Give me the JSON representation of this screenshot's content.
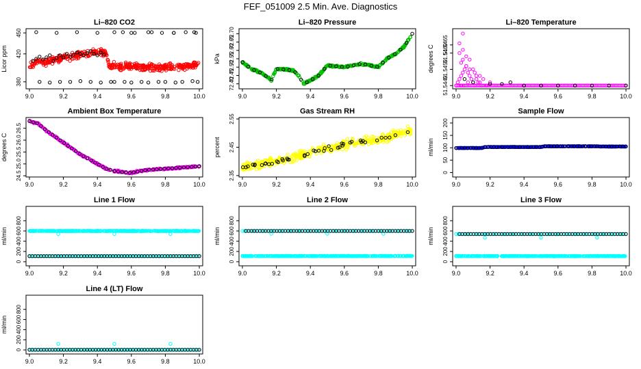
{
  "page": {
    "title": "FEF_051009  2.5 Min. Ave. Diagnostics"
  },
  "colors": {
    "red": "#ff0000",
    "green": "#00c000",
    "magenta": "#ff00ff",
    "yellow": "#ffff00",
    "blue": "#0000ff",
    "cyan": "#00ffff",
    "black": "#000000"
  },
  "chart_data": [
    {
      "id": "li820-co2",
      "type": "scatter",
      "title": "Li–820 CO2",
      "ylabel": "Licor ppm",
      "xlim": [
        8.98,
        10.02
      ],
      "ylim": [
        370,
        456
      ],
      "xticks": [
        "9.0",
        "9.2",
        "9.4",
        "9.6",
        "9.8",
        "10.0"
      ],
      "yticks": [
        "380",
        "420",
        "450"
      ],
      "series": [
        {
          "name": "raw",
          "color": "red",
          "kind": "noisy",
          "x": [
            9.0,
            9.05,
            9.1,
            9.15,
            9.2,
            9.25,
            9.3,
            9.35,
            9.4,
            9.45,
            9.47,
            9.5,
            9.6,
            9.7,
            9.8,
            9.9,
            10.0
          ],
          "y": [
            403,
            410,
            408,
            412,
            414,
            416,
            419,
            420,
            424,
            421,
            404,
            403,
            402,
            401,
            401,
            402,
            404
          ],
          "n": 460,
          "noise": 7
        },
        {
          "name": "2.5 min avg",
          "color": "black",
          "kind": "points",
          "x": [
            9.02,
            9.04,
            9.06,
            9.08,
            9.1,
            9.12,
            9.14,
            9.16,
            9.18,
            9.2,
            9.22,
            9.24,
            9.26,
            9.28,
            9.3,
            9.32,
            9.34,
            9.36,
            9.38,
            9.4,
            9.42,
            9.44,
            9.5,
            9.56,
            9.6,
            9.66,
            9.7,
            9.76,
            9.8,
            9.86,
            9.9,
            9.96,
            9.99,
            9.06,
            9.12,
            9.18,
            9.24,
            9.3,
            9.36,
            9.42,
            9.48,
            9.55,
            9.62,
            9.7,
            9.78,
            9.85,
            9.92,
            9.98,
            9.04,
            9.16,
            9.28,
            9.4,
            9.5,
            9.6,
            9.72,
            9.85,
            9.97
          ],
          "y": [
            410,
            413,
            416,
            412,
            415,
            418,
            410,
            414,
            418,
            415,
            420,
            416,
            419,
            422,
            420,
            418,
            421,
            424,
            420,
            418,
            422,
            419,
            380,
            380,
            379,
            380,
            379,
            380,
            380,
            379,
            380,
            381,
            380,
            380,
            379,
            380,
            380,
            381,
            380,
            379,
            380,
            451,
            450,
            451,
            450,
            450,
            451,
            450,
            451,
            450,
            451,
            450,
            451,
            450,
            451,
            450,
            451
          ]
        }
      ]
    },
    {
      "id": "li820-pressure",
      "type": "scatter",
      "title": "Li–820 Pressure",
      "ylabel": "kPa",
      "xlim": [
        8.98,
        10.02
      ],
      "ylim": [
        72.37,
        72.73
      ],
      "xticks": [
        "9.0",
        "9.2",
        "9.4",
        "9.6",
        "9.8",
        "10.0"
      ],
      "yticks": [
        "72.40",
        "72.45",
        "72.50",
        "72.55",
        "72.60",
        "72.65",
        "72.70"
      ],
      "series": [
        {
          "name": "raw",
          "color": "green",
          "kind": "noisy",
          "x": [
            9.0,
            9.05,
            9.1,
            9.15,
            9.17,
            9.2,
            9.3,
            9.33,
            9.36,
            9.4,
            9.45,
            9.5,
            9.6,
            9.7,
            9.8,
            9.85,
            9.9,
            9.95,
            10.0
          ],
          "y": [
            72.53,
            72.49,
            72.47,
            72.44,
            72.42,
            72.49,
            72.48,
            72.45,
            72.4,
            72.42,
            72.45,
            72.51,
            72.5,
            72.52,
            72.5,
            72.55,
            72.58,
            72.62,
            72.7
          ],
          "n": 400,
          "noise": 0.008
        },
        {
          "name": "2.5 min avg",
          "color": "black",
          "kind": "line-points",
          "x": [
            9.0,
            9.05,
            9.1,
            9.15,
            9.17,
            9.2,
            9.3,
            9.33,
            9.36,
            9.4,
            9.45,
            9.5,
            9.6,
            9.7,
            9.8,
            9.85,
            9.9,
            9.95,
            10.0
          ],
          "y": [
            72.53,
            72.49,
            72.47,
            72.44,
            72.42,
            72.49,
            72.48,
            72.45,
            72.4,
            72.42,
            72.45,
            72.51,
            72.5,
            72.52,
            72.5,
            72.55,
            72.58,
            72.62,
            72.7
          ],
          "n": 30
        }
      ]
    },
    {
      "id": "li820-temperature",
      "type": "scatter",
      "title": "Li–820 Temperature",
      "ylabel": "degrees C",
      "xlim": [
        8.98,
        10.02
      ],
      "ylim": [
        51.5438,
        51.5475
      ],
      "xticks": [
        "9.0",
        "9.2",
        "9.4",
        "9.6",
        "9.8",
        "10.0"
      ],
      "yticks": [
        "51.5440",
        "51.5450",
        "51.5460",
        "51.5465"
      ],
      "series": [
        {
          "name": "raw",
          "color": "magenta",
          "kind": "points",
          "x": [
            9.0,
            9.01,
            9.02,
            9.03,
            9.04,
            9.05,
            9.06,
            9.07,
            9.08,
            9.09,
            9.1,
            9.11,
            9.12,
            9.14,
            9.16,
            9.03,
            9.04,
            9.06,
            9.08,
            9.1,
            9.12,
            9.14,
            9.02,
            9.04,
            9.06,
            9.08,
            9.02,
            9.04,
            9.03,
            9.05,
            9.07,
            9.11,
            9.13,
            9.15,
            9.18,
            9.2
          ],
          "y": [
            51.544,
            51.5442,
            51.5444,
            51.5446,
            51.5448,
            51.545,
            51.5452,
            51.5448,
            51.5446,
            51.5444,
            51.5442,
            51.5448,
            51.5444,
            51.5442,
            51.5444,
            51.5454,
            51.5456,
            51.5452,
            51.545,
            51.545,
            51.5446,
            51.5446,
            51.546,
            51.5462,
            51.5458,
            51.5456,
            51.5466,
            51.5472,
            51.544,
            51.544,
            51.5442,
            51.544,
            51.5442,
            51.544,
            51.544,
            51.5442
          ]
        },
        {
          "name": "baseline",
          "color": "magenta",
          "kind": "line-points",
          "x": [
            9.0,
            10.0
          ],
          "y": [
            51.544,
            51.544
          ],
          "n": 120
        },
        {
          "name": "2.5 min avg",
          "color": "black",
          "kind": "points",
          "x": [
            9.05,
            9.1,
            9.2,
            9.27,
            9.32,
            9.4,
            9.5,
            9.6,
            9.7,
            9.8,
            9.9,
            10.0
          ],
          "y": [
            51.5444,
            51.5442,
            51.5441,
            51.5441,
            51.5442,
            51.544,
            51.544,
            51.544,
            51.544,
            51.544,
            51.544,
            51.544
          ]
        }
      ]
    },
    {
      "id": "ambient-box-temperature",
      "type": "scatter",
      "title": "Ambient Box Temperature",
      "ylabel": "degrees C",
      "xlim": [
        8.98,
        10.02
      ],
      "ylim": [
        24.45,
        26.95
      ],
      "xticks": [
        "9.0",
        "9.2",
        "9.4",
        "9.6",
        "9.8",
        "10.0"
      ],
      "yticks": [
        "24.5",
        "25.0",
        "25.5",
        "26.0",
        "26.5"
      ],
      "series": [
        {
          "name": "raw",
          "color": "magenta",
          "kind": "noisy",
          "x": [
            9.0,
            9.05,
            9.1,
            9.15,
            9.2,
            9.3,
            9.4,
            9.45,
            9.5,
            9.55,
            9.6,
            9.65,
            9.7,
            9.8,
            9.9,
            10.0
          ],
          "y": [
            26.8,
            26.7,
            26.4,
            26.15,
            25.9,
            25.4,
            25.0,
            24.8,
            24.7,
            24.65,
            24.62,
            24.7,
            24.75,
            24.8,
            24.85,
            24.9
          ],
          "n": 400,
          "noise": 0.05
        },
        {
          "name": "2.5 min avg",
          "color": "black",
          "kind": "line-points",
          "x": [
            9.0,
            9.05,
            9.1,
            9.15,
            9.2,
            9.3,
            9.4,
            9.45,
            9.5,
            9.55,
            9.6,
            9.65,
            9.7,
            9.8,
            9.9,
            10.0
          ],
          "y": [
            26.8,
            26.7,
            26.4,
            26.15,
            25.9,
            25.4,
            25.0,
            24.8,
            24.7,
            24.65,
            24.62,
            24.7,
            24.75,
            24.8,
            24.85,
            24.9
          ],
          "n": 45
        }
      ]
    },
    {
      "id": "gas-stream-rh",
      "type": "scatter",
      "title": "Gas Stream RH",
      "ylabel": "percent",
      "xlim": [
        8.98,
        10.02
      ],
      "ylim": [
        2.345,
        2.555
      ],
      "xticks": [
        "9.0",
        "9.2",
        "9.4",
        "9.6",
        "9.8",
        "10.0"
      ],
      "yticks": [
        "2.35",
        "2.45",
        "2.55"
      ],
      "series": [
        {
          "name": "raw",
          "color": "yellow",
          "kind": "noisy",
          "x": [
            9.0,
            9.2,
            9.4,
            9.6,
            9.8,
            10.0
          ],
          "y": [
            2.38,
            2.4,
            2.43,
            2.46,
            2.48,
            2.51
          ],
          "n": 420,
          "noise": 0.022
        },
        {
          "name": "2.5 min avg",
          "color": "black",
          "kind": "noisy",
          "x": [
            9.0,
            9.2,
            9.4,
            9.6,
            9.8,
            10.0
          ],
          "y": [
            2.38,
            2.4,
            2.43,
            2.46,
            2.48,
            2.51
          ],
          "n": 45,
          "noise": 0.012
        }
      ]
    },
    {
      "id": "sample-flow",
      "type": "scatter",
      "title": "Sample Flow",
      "ylabel": "ml/min",
      "xlim": [
        8.98,
        10.02
      ],
      "ylim": [
        -18,
        222
      ],
      "xticks": [
        "9.0",
        "9.2",
        "9.4",
        "9.6",
        "9.8",
        "10.0"
      ],
      "yticks": [
        "0",
        "50",
        "100",
        "150",
        "200"
      ],
      "series": [
        {
          "name": "raw",
          "color": "blue",
          "kind": "noisy",
          "x": [
            9.0,
            9.15,
            9.17,
            9.5,
            9.52,
            9.83,
            9.85,
            10.0
          ],
          "y": [
            99,
            99,
            103,
            103,
            106,
            106,
            105,
            105
          ],
          "n": 400,
          "noise": 1
        },
        {
          "name": "2.5 min avg",
          "color": "black",
          "kind": "line-points",
          "x": [
            9.0,
            9.15,
            9.17,
            9.5,
            9.52,
            9.83,
            9.85,
            10.0
          ],
          "y": [
            99,
            99,
            103,
            103,
            106,
            106,
            105,
            105
          ],
          "n": 60
        }
      ]
    },
    {
      "id": "line-1-flow",
      "type": "scatter",
      "title": "Line 1 Flow",
      "ylabel": "ml/min",
      "xlim": [
        8.98,
        10.02
      ],
      "ylim": [
        -80,
        1080
      ],
      "xticks": [
        "9.0",
        "9.2",
        "9.4",
        "9.6",
        "9.8",
        "10.0"
      ],
      "yticks": [
        "0",
        "200",
        "400",
        "600",
        "800"
      ],
      "series": [
        {
          "name": "raw",
          "color": "cyan",
          "kind": "noisy",
          "x": [
            9.0,
            10.0
          ],
          "y": [
            600,
            600
          ],
          "n": 420,
          "noise": 6
        },
        {
          "name": "raw-low",
          "color": "cyan",
          "kind": "line-points",
          "x": [
            9.0,
            10.0
          ],
          "y": [
            110,
            110
          ],
          "n": 120
        },
        {
          "name": "dips",
          "color": "cyan",
          "kind": "points",
          "x": [
            9.17,
            9.5,
            9.83
          ],
          "y": [
            540,
            540,
            540
          ]
        },
        {
          "name": "2.5 min avg",
          "color": "black",
          "kind": "line-points",
          "x": [
            9.0,
            10.0
          ],
          "y": [
            110,
            110
          ],
          "n": 60
        }
      ]
    },
    {
      "id": "line-2-flow",
      "type": "scatter",
      "title": "Line 2 Flow",
      "ylabel": "ml/min",
      "xlim": [
        8.98,
        10.02
      ],
      "ylim": [
        -80,
        1080
      ],
      "xticks": [
        "9.0",
        "9.2",
        "9.4",
        "9.6",
        "9.8",
        "10.0"
      ],
      "yticks": [
        "0",
        "200",
        "400",
        "600",
        "800"
      ],
      "series": [
        {
          "name": "raw",
          "color": "cyan",
          "kind": "noisy",
          "x": [
            9.0,
            10.0
          ],
          "y": [
            110,
            112
          ],
          "n": 420,
          "noise": 6
        },
        {
          "name": "raw-high",
          "color": "cyan",
          "kind": "line-points",
          "x": [
            9.0,
            10.0
          ],
          "y": [
            600,
            600
          ],
          "n": 80
        },
        {
          "name": "dips",
          "color": "cyan",
          "kind": "points",
          "x": [
            9.17,
            9.5,
            9.83
          ],
          "y": [
            545,
            545,
            545
          ]
        },
        {
          "name": "2.5 min avg",
          "color": "black",
          "kind": "line-points",
          "x": [
            9.02,
            10.0
          ],
          "y": [
            600,
            600
          ],
          "n": 60
        }
      ]
    },
    {
      "id": "line-3-flow",
      "type": "scatter",
      "title": "Line 3 Flow",
      "ylabel": "ml/min",
      "xlim": [
        8.98,
        10.02
      ],
      "ylim": [
        -80,
        1080
      ],
      "xticks": [
        "9.0",
        "9.2",
        "9.4",
        "9.6",
        "9.8",
        "10.0"
      ],
      "yticks": [
        "0",
        "200",
        "400",
        "600",
        "800"
      ],
      "series": [
        {
          "name": "raw",
          "color": "cyan",
          "kind": "noisy",
          "x": [
            9.0,
            10.0
          ],
          "y": [
            110,
            110
          ],
          "n": 420,
          "noise": 6
        },
        {
          "name": "raw-high",
          "color": "cyan",
          "kind": "line-points",
          "x": [
            9.0,
            10.0
          ],
          "y": [
            540,
            540
          ],
          "n": 80
        },
        {
          "name": "dips",
          "color": "cyan",
          "kind": "points",
          "x": [
            9.17,
            9.5,
            9.83
          ],
          "y": [
            470,
            470,
            470
          ]
        },
        {
          "name": "2.5 min avg",
          "color": "black",
          "kind": "line-points",
          "x": [
            9.02,
            10.0
          ],
          "y": [
            540,
            540
          ],
          "n": 60
        }
      ]
    },
    {
      "id": "line-4-lt-flow",
      "type": "scatter",
      "title": "Line 4 (LT) Flow",
      "ylabel": "ml/min",
      "xlim": [
        8.98,
        10.02
      ],
      "ylim": [
        -80,
        1080
      ],
      "xticks": [
        "9.0",
        "9.2",
        "9.4",
        "9.6",
        "9.8",
        "10.0"
      ],
      "yticks": [
        "0",
        "200",
        "400",
        "600",
        "800"
      ],
      "series": [
        {
          "name": "raw",
          "color": "cyan",
          "kind": "line-points",
          "x": [
            9.0,
            10.0
          ],
          "y": [
            2,
            2
          ],
          "n": 120
        },
        {
          "name": "spikes",
          "color": "cyan",
          "kind": "points",
          "x": [
            9.17,
            9.5,
            9.83
          ],
          "y": [
            120,
            120,
            120
          ]
        },
        {
          "name": "2.5 min avg",
          "color": "black",
          "kind": "line-points",
          "x": [
            9.0,
            10.0
          ],
          "y": [
            2,
            2
          ],
          "n": 60
        }
      ]
    }
  ]
}
